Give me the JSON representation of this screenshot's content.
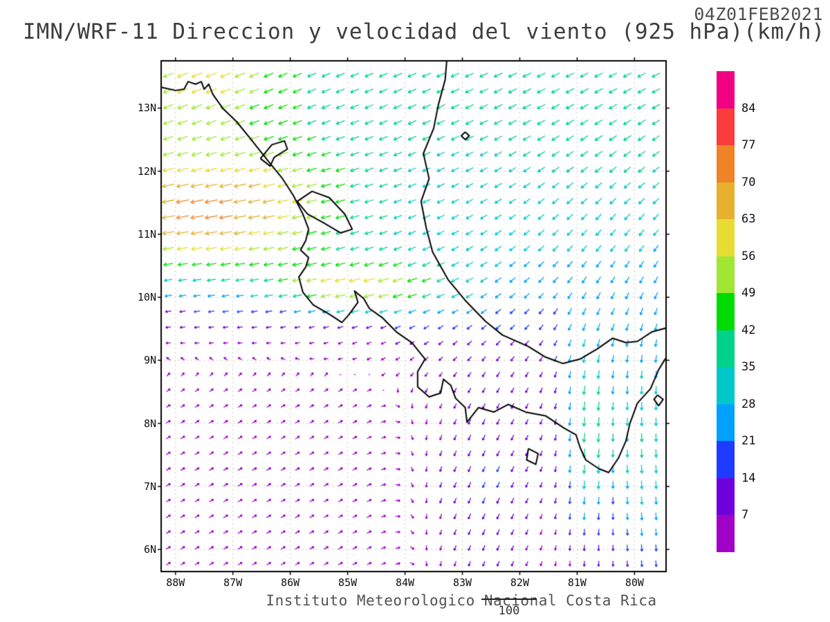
{
  "header": {
    "timestamp": "04Z01FEB2021",
    "title": "IMN/WRF-11 Direccion y velocidad del viento (925 hPa)(km/h)"
  },
  "footer": {
    "caption": "Instituto Meteorologico Nacional Costa Rica",
    "reference_vector_label": "100"
  },
  "chart_data": {
    "type": "vector_field_map",
    "title": "IMN/WRF-11 Direccion y velocidad del viento (925 hPa)(km/h)",
    "valid_time": "04Z01FEB2021",
    "variable": "Direccion y velocidad del viento",
    "level": "925 hPa",
    "speed_unit": "km/h",
    "source": "Instituto Meteorologico Nacional Costa Rica",
    "reference_vector": "100",
    "axes": {
      "lon_range": [
        -88.25,
        -79.45
      ],
      "lat_range": [
        5.65,
        13.75
      ],
      "lon_tick_values": [
        -88,
        -87,
        -86,
        -85,
        -84,
        -83,
        -82,
        -81,
        -80
      ],
      "lon_tick_labels": [
        "88W",
        "87W",
        "86W",
        "85W",
        "84W",
        "83W",
        "82W",
        "81W",
        "80W"
      ],
      "lat_tick_values": [
        6,
        7,
        8,
        9,
        10,
        11,
        12,
        13
      ],
      "lat_tick_labels": [
        "6N",
        "7N",
        "8N",
        "9N",
        "10N",
        "11N",
        "12N",
        "13N"
      ],
      "grid": "dotted"
    },
    "colorbar": {
      "levels": [
        7,
        14,
        21,
        28,
        35,
        42,
        49,
        56,
        63,
        70,
        77,
        84
      ],
      "labels_top_to_bottom": [
        "84",
        "77",
        "70",
        "63",
        "56",
        "49",
        "42",
        "35",
        "28",
        "21",
        "14",
        "7"
      ],
      "colors_low_to_high": [
        "#A000C8",
        "#6E00DC",
        "#1E3CFF",
        "#00A0FF",
        "#00C8C8",
        "#00D28C",
        "#00DC00",
        "#A0E632",
        "#E6DC32",
        "#E6AF2D",
        "#F08228",
        "#FA3C3C",
        "#F00082"
      ]
    },
    "wind_field": {
      "grid_step_deg": 0.25,
      "components": [
        {
          "name": "ne-trades",
          "u": -36,
          "v": -16,
          "lon_c": -84.0,
          "lon_s": 12.0,
          "lat_c": 13.5,
          "lat_s": 2.6
        },
        {
          "name": "papagayo-jet",
          "u": -55,
          "v": -6,
          "lon_c": -87.5,
          "lon_s": 2.6,
          "lat_c": 11.25,
          "lat_s": 1.15
        },
        {
          "name": "nw-corner-flow",
          "u": -22,
          "v": -8,
          "lon_c": -87.6,
          "lon_s": 1.2,
          "lat_c": 13.6,
          "lat_s": 0.9
        },
        {
          "name": "nicoya-gap-streak",
          "u": -38,
          "v": -7,
          "lon_c": -84.9,
          "lon_s": 1.4,
          "lat_c": 10.15,
          "lat_s": 0.42
        },
        {
          "name": "central-flow",
          "u": -14,
          "v": -8,
          "lon_c": -83.3,
          "lon_s": 1.8,
          "lat_c": 10.3,
          "lat_s": 1.0
        },
        {
          "name": "caribbean-southward-turn",
          "u": -6,
          "v": -16,
          "lon_c": -80.3,
          "lon_s": 2.2,
          "lat_c": 10.8,
          "lat_s": 2.2
        },
        {
          "name": "sw-pacific-weak",
          "u": 5,
          "v": 3,
          "lon_c": -87.0,
          "lon_s": 4.5,
          "lat_c": 6.8,
          "lat_s": 2.6
        },
        {
          "name": "se-pacific-flow",
          "u": -8,
          "v": -14,
          "lon_c": -82.6,
          "lon_s": 1.1,
          "lat_c": 7.0,
          "lat_s": 1.8
        },
        {
          "name": "panama-gap-jet-west",
          "u": -3,
          "v": -38,
          "lon_c": -80.8,
          "lon_s": 0.45,
          "lat_c": 7.8,
          "lat_s": 1.6
        },
        {
          "name": "panama-gap-jet-east",
          "u": 2,
          "v": -34,
          "lon_c": -79.8,
          "lon_s": 0.55,
          "lat_c": 7.5,
          "lat_s": 2.0
        }
      ]
    },
    "geography": {
      "coastlines": [
        [
          [
            -88.25,
            13.33
          ],
          [
            -88.0,
            13.28
          ],
          [
            -87.85,
            13.3
          ],
          [
            -87.78,
            13.42
          ],
          [
            -87.65,
            13.38
          ],
          [
            -87.55,
            13.42
          ],
          [
            -87.5,
            13.3
          ],
          [
            -87.42,
            13.38
          ],
          [
            -87.35,
            13.22
          ],
          [
            -87.18,
            13.0
          ],
          [
            -86.93,
            12.78
          ],
          [
            -86.68,
            12.5
          ],
          [
            -86.42,
            12.2
          ],
          [
            -86.15,
            11.9
          ],
          [
            -85.95,
            11.62
          ],
          [
            -85.78,
            11.32
          ],
          [
            -85.68,
            11.08
          ],
          [
            -85.73,
            10.9
          ],
          [
            -85.82,
            10.75
          ],
          [
            -85.68,
            10.63
          ],
          [
            -85.73,
            10.48
          ],
          [
            -85.85,
            10.32
          ],
          [
            -85.78,
            10.08
          ],
          [
            -85.6,
            9.88
          ],
          [
            -85.3,
            9.72
          ],
          [
            -85.1,
            9.6
          ],
          [
            -84.98,
            9.72
          ],
          [
            -84.82,
            9.92
          ],
          [
            -84.88,
            10.1
          ],
          [
            -84.72,
            9.98
          ],
          [
            -84.62,
            9.82
          ],
          [
            -84.4,
            9.68
          ],
          [
            -84.15,
            9.45
          ],
          [
            -83.88,
            9.28
          ],
          [
            -83.65,
            9.02
          ],
          [
            -83.78,
            8.82
          ],
          [
            -83.78,
            8.58
          ],
          [
            -83.58,
            8.42
          ],
          [
            -83.38,
            8.48
          ],
          [
            -83.33,
            8.7
          ],
          [
            -83.2,
            8.6
          ],
          [
            -83.12,
            8.4
          ],
          [
            -82.95,
            8.25
          ],
          [
            -82.92,
            8.02
          ],
          [
            -82.72,
            8.25
          ],
          [
            -82.45,
            8.18
          ],
          [
            -82.2,
            8.3
          ],
          [
            -81.9,
            8.18
          ],
          [
            -81.55,
            8.12
          ],
          [
            -81.22,
            7.92
          ],
          [
            -81.02,
            7.82
          ],
          [
            -80.95,
            7.62
          ],
          [
            -80.85,
            7.42
          ],
          [
            -80.62,
            7.28
          ],
          [
            -80.45,
            7.22
          ],
          [
            -80.28,
            7.45
          ],
          [
            -80.15,
            7.72
          ],
          [
            -80.08,
            8.0
          ],
          [
            -79.95,
            8.32
          ],
          [
            -79.72,
            8.55
          ],
          [
            -79.58,
            8.85
          ],
          [
            -79.48,
            9.0
          ],
          [
            -79.42,
            9.08
          ]
        ],
        [
          [
            -79.42,
            9.52
          ],
          [
            -79.7,
            9.45
          ],
          [
            -79.95,
            9.3
          ],
          [
            -80.15,
            9.28
          ],
          [
            -80.38,
            9.35
          ],
          [
            -80.65,
            9.18
          ],
          [
            -80.95,
            9.02
          ],
          [
            -81.25,
            8.95
          ],
          [
            -81.55,
            9.05
          ],
          [
            -81.85,
            9.22
          ],
          [
            -82.1,
            9.32
          ],
          [
            -82.3,
            9.4
          ],
          [
            -82.6,
            9.62
          ],
          [
            -82.95,
            9.95
          ],
          [
            -83.25,
            10.28
          ],
          [
            -83.52,
            10.72
          ],
          [
            -83.63,
            11.1
          ],
          [
            -83.72,
            11.52
          ],
          [
            -83.58,
            11.88
          ],
          [
            -83.68,
            12.28
          ],
          [
            -83.5,
            12.68
          ],
          [
            -83.42,
            13.05
          ],
          [
            -83.3,
            13.45
          ],
          [
            -83.27,
            13.78
          ]
        ],
        [
          [
            -85.88,
            11.52
          ],
          [
            -85.62,
            11.68
          ],
          [
            -85.32,
            11.58
          ],
          [
            -85.05,
            11.32
          ],
          [
            -84.92,
            11.08
          ],
          [
            -85.12,
            11.02
          ],
          [
            -85.42,
            11.18
          ],
          [
            -85.7,
            11.32
          ],
          [
            -85.88,
            11.52
          ]
        ],
        [
          [
            -86.52,
            12.2
          ],
          [
            -86.32,
            12.42
          ],
          [
            -86.1,
            12.48
          ],
          [
            -86.05,
            12.35
          ],
          [
            -86.28,
            12.22
          ],
          [
            -86.35,
            12.08
          ],
          [
            -86.52,
            12.2
          ]
        ],
        [
          [
            -81.85,
            7.6
          ],
          [
            -81.68,
            7.52
          ],
          [
            -81.72,
            7.35
          ],
          [
            -81.88,
            7.42
          ],
          [
            -81.85,
            7.6
          ]
        ],
        [
          [
            -79.6,
            8.45
          ],
          [
            -79.5,
            8.38
          ],
          [
            -79.58,
            8.28
          ],
          [
            -79.66,
            8.38
          ],
          [
            -79.6,
            8.45
          ]
        ],
        [
          [
            -82.95,
            12.62
          ],
          [
            -82.88,
            12.56
          ],
          [
            -82.95,
            12.5
          ],
          [
            -83.02,
            12.56
          ],
          [
            -82.95,
            12.62
          ]
        ]
      ]
    }
  }
}
